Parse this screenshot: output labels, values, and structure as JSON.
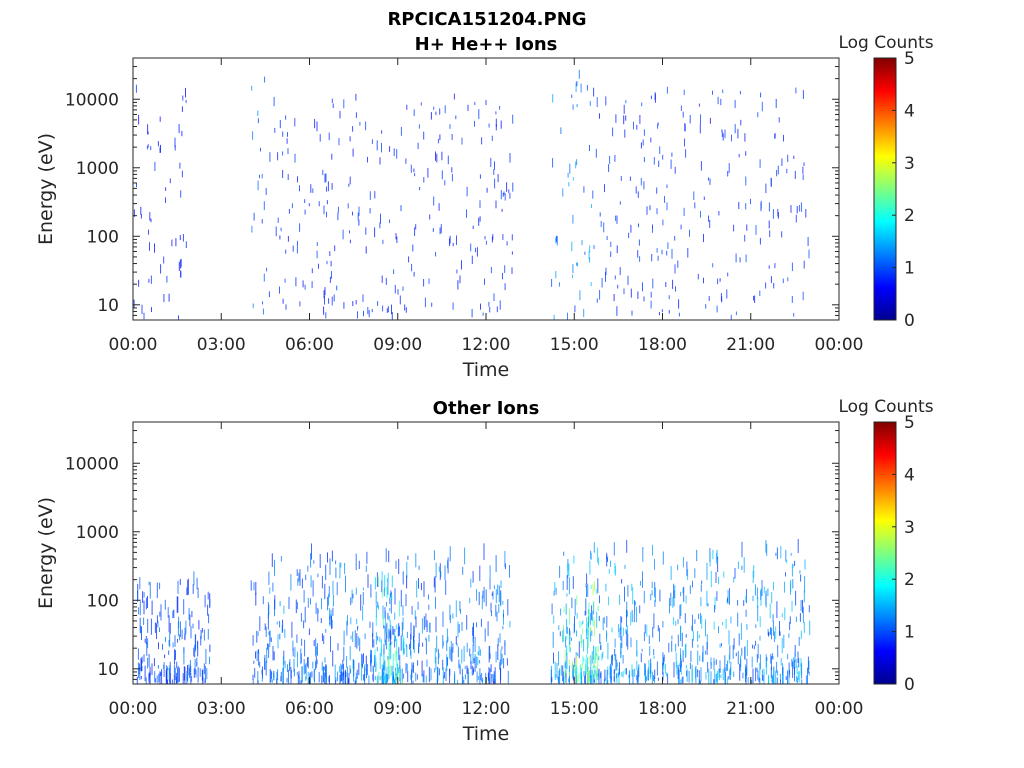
{
  "figure_title": "RPCICA151204.PNG",
  "chart_data": [
    {
      "type": "heatmap",
      "title": "H+ He++ Ions",
      "xlabel": "Time",
      "ylabel": "Energy (eV)",
      "x_ticks": [
        "00:00",
        "03:00",
        "06:00",
        "09:00",
        "12:00",
        "15:00",
        "18:00",
        "21:00",
        "00:00"
      ],
      "x_range_hours": [
        0,
        24
      ],
      "y_scale": "log",
      "y_ticks": [
        10,
        100,
        1000,
        10000
      ],
      "y_tick_labels": [
        "10",
        "100",
        "1000",
        "10000"
      ],
      "y_range": [
        6,
        40000
      ],
      "colorbar": {
        "label": "Log Counts",
        "range": [
          0,
          5
        ],
        "ticks": [
          "0",
          "1",
          "2",
          "3",
          "4",
          "5"
        ],
        "colormap": "jet"
      },
      "activity": [
        {
          "start_h": 0.0,
          "end_h": 1.8,
          "level": 0.3,
          "max_log_energy": 4.2
        },
        {
          "start_h": 4.0,
          "end_h": 4.6,
          "level": 0.7,
          "max_log_energy": 4.3
        },
        {
          "start_h": 4.6,
          "end_h": 13.0,
          "level": 0.35,
          "max_log_energy": 4.0
        },
        {
          "start_h": 14.2,
          "end_h": 15.6,
          "level": 0.8,
          "max_log_energy": 4.3
        },
        {
          "start_h": 15.6,
          "end_h": 23.0,
          "level": 0.4,
          "max_log_energy": 4.1
        }
      ]
    },
    {
      "type": "heatmap",
      "title": "Other Ions",
      "xlabel": "Time",
      "ylabel": "Energy (eV)",
      "x_ticks": [
        "00:00",
        "03:00",
        "06:00",
        "09:00",
        "12:00",
        "15:00",
        "18:00",
        "21:00",
        "00:00"
      ],
      "x_range_hours": [
        0,
        24
      ],
      "y_scale": "log",
      "y_ticks": [
        10,
        100,
        1000,
        10000
      ],
      "y_tick_labels": [
        "10",
        "100",
        "1000",
        "10000"
      ],
      "y_range": [
        6,
        40000
      ],
      "colorbar": {
        "label": "Log Counts",
        "range": [
          0,
          5
        ],
        "ticks": [
          "0",
          "1",
          "2",
          "3",
          "4",
          "5"
        ],
        "colormap": "jet"
      },
      "activity": [
        {
          "start_h": 0.1,
          "end_h": 2.6,
          "level": 0.55,
          "max_log_energy": 2.3
        },
        {
          "start_h": 4.0,
          "end_h": 12.8,
          "level": 0.75,
          "max_log_energy": 2.6
        },
        {
          "start_h": 8.2,
          "end_h": 9.2,
          "level": 1.6,
          "max_log_energy": 2.3
        },
        {
          "start_h": 14.2,
          "end_h": 23.0,
          "level": 0.9,
          "max_log_energy": 2.7
        },
        {
          "start_h": 14.6,
          "end_h": 15.8,
          "level": 1.9,
          "max_log_energy": 2.2
        }
      ]
    }
  ]
}
